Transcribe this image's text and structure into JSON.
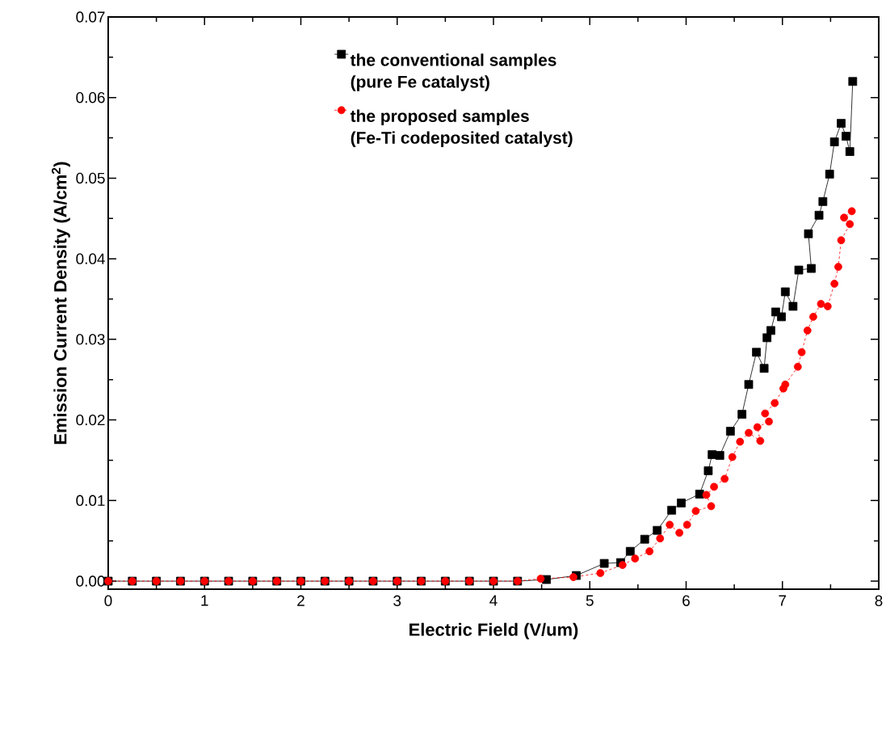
{
  "chart_data": {
    "type": "line",
    "xlabel": "Electric Field (V/um)",
    "ylabel": "Emission Current Density (A/cm$^{2}$)",
    "xlim": [
      0,
      8
    ],
    "xticks": [
      0,
      1,
      2,
      3,
      4,
      5,
      6,
      7,
      8
    ],
    "ylim": [
      -0.001,
      0.07
    ],
    "yticks": [
      {
        "value": 0,
        "label": "0.00"
      },
      {
        "value": 0.01,
        "label": "0.01"
      },
      {
        "value": 0.02,
        "label": "0.02"
      },
      {
        "value": 0.03,
        "label": "0.03"
      },
      {
        "value": 0.04,
        "label": "0.04"
      },
      {
        "value": 0.05,
        "label": "0.05"
      },
      {
        "value": 0.06,
        "label": "0.06"
      },
      {
        "value": 0.07,
        "label": "0.07"
      }
    ],
    "legend": "top",
    "series": [
      {
        "name": "the conventional samples (pure Fe catalyst)",
        "color": "#000000",
        "marker": "square",
        "line_style": "solid",
        "x": [
          0,
          0.25,
          0.5,
          0.75,
          1,
          1.25,
          1.5,
          1.75,
          2,
          2.25,
          2.5,
          2.75,
          3,
          3.25,
          3.5,
          3.75,
          4,
          4.25,
          4.55,
          4.86,
          5.15,
          5.32,
          5.42,
          5.57,
          5.7,
          5.85,
          5.95,
          6.14,
          6.23,
          6.27,
          6.35,
          6.46,
          6.58,
          6.65,
          6.73,
          6.81,
          6.84,
          6.88,
          6.93,
          6.99,
          7.03,
          7.11,
          7.17,
          7.3,
          7.27,
          7.38,
          7.42,
          7.49,
          7.54,
          7.61,
          7.66,
          7.7,
          7.73
        ],
        "values": [
          0,
          0,
          0,
          0,
          0,
          0,
          0,
          0,
          0,
          0,
          0,
          0,
          0,
          0,
          0,
          0,
          0,
          0,
          0.0002,
          0.0007,
          0.0022,
          0.0023,
          0.0037,
          0.0052,
          0.0063,
          0.0088,
          0.0097,
          0.0108,
          0.0137,
          0.0157,
          0.0156,
          0.0186,
          0.0207,
          0.0244,
          0.0284,
          0.0264,
          0.0302,
          0.0311,
          0.0334,
          0.0328,
          0.0359,
          0.0341,
          0.0386,
          0.0388,
          0.0431,
          0.0454,
          0.0471,
          0.0505,
          0.0545,
          0.0568,
          0.0552,
          0.0533,
          0.062
        ]
      },
      {
        "name": "the proposed samples (Fe-Ti codeposited catalyst)",
        "color": "#ff0000",
        "marker": "circle",
        "line_style": "dashed",
        "x": [
          0,
          0.25,
          0.5,
          0.75,
          1,
          1.25,
          1.5,
          1.75,
          2,
          2.25,
          2.5,
          2.75,
          3,
          3.25,
          3.5,
          3.75,
          4,
          4.25,
          4.49,
          4.83,
          5.11,
          5.34,
          5.47,
          5.62,
          5.73,
          5.83,
          5.93,
          6.01,
          6.1,
          6.26,
          6.21,
          6.29,
          6.4,
          6.48,
          6.56,
          6.65,
          6.77,
          6.74,
          6.86,
          6.82,
          6.92,
          7.01,
          7.03,
          7.16,
          7.2,
          7.26,
          7.32,
          7.4,
          7.47,
          7.54,
          7.58,
          7.61,
          7.7,
          7.64,
          7.72
        ],
        "values": [
          0,
          0,
          0,
          0,
          0,
          0,
          0,
          0,
          0,
          0,
          0,
          0,
          0,
          0,
          0,
          0,
          0,
          0,
          0.0003,
          0.0005,
          0.001,
          0.002,
          0.0028,
          0.0037,
          0.0053,
          0.007,
          0.006,
          0.007,
          0.0087,
          0.0093,
          0.0107,
          0.0117,
          0.0127,
          0.0154,
          0.0173,
          0.0184,
          0.0174,
          0.0191,
          0.0198,
          0.0208,
          0.0221,
          0.0239,
          0.0244,
          0.0266,
          0.0284,
          0.0311,
          0.0328,
          0.0344,
          0.0341,
          0.0369,
          0.039,
          0.0423,
          0.0443,
          0.0451,
          0.0459
        ]
      }
    ]
  }
}
